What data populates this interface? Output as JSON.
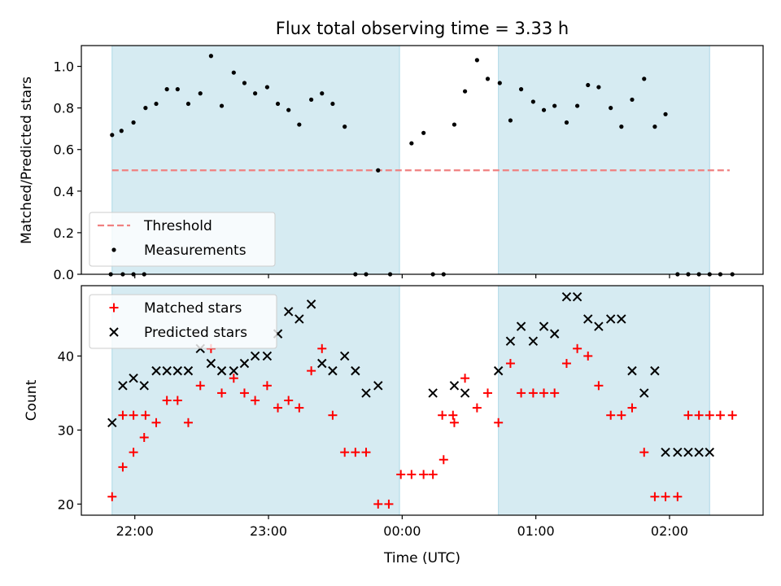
{
  "chart_data": [
    {
      "type": "scatter",
      "title": "Flux total observing time = 3.33 h",
      "xlabel": "",
      "ylabel": "Matched/Predicted stars",
      "x_unit": "hours (UTC, 22.0 = 22:00; values beyond 24 = next day)",
      "xlim": [
        21.6,
        26.7
      ],
      "ylim": [
        0.0,
        1.1
      ],
      "yticks": [
        "0.0",
        "0.2",
        "0.4",
        "0.6",
        "0.8",
        "1.0"
      ],
      "grid": false,
      "legend_position": "lower-left",
      "shaded_intervals": [
        [
          21.83,
          23.98
        ],
        [
          24.72,
          26.3
        ]
      ],
      "shade_color": "#add8e6",
      "series": [
        {
          "name": "Threshold",
          "style": "dashed-line",
          "color": "#f08080",
          "x": [
            21.83,
            26.45
          ],
          "y": [
            0.5,
            0.5
          ]
        },
        {
          "name": "Measurements",
          "style": "dot",
          "color": "#000000",
          "x": [
            21.82,
            21.91,
            21.99,
            22.07,
            21.83,
            21.9,
            21.99,
            22.08,
            22.16,
            22.24,
            22.32,
            22.4,
            22.49,
            22.57,
            22.65,
            22.74,
            22.82,
            22.9,
            22.99,
            23.07,
            23.15,
            23.23,
            23.32,
            23.4,
            23.48,
            23.57,
            23.65,
            23.73,
            23.82,
            23.91,
            24.07,
            24.16,
            24.23,
            24.31,
            24.39,
            24.47,
            24.56,
            24.64,
            24.73,
            24.81,
            24.89,
            24.98,
            25.06,
            25.14,
            25.23,
            25.31,
            25.39,
            25.47,
            25.56,
            25.64,
            25.72,
            25.81,
            25.89,
            25.97,
            26.06,
            26.14,
            26.22,
            26.3,
            26.38,
            26.47
          ],
          "y": [
            0.0,
            0.0,
            0.0,
            0.0,
            0.67,
            0.69,
            0.73,
            0.8,
            0.82,
            0.89,
            0.89,
            0.82,
            0.87,
            1.05,
            0.81,
            0.97,
            0.92,
            0.87,
            0.9,
            0.82,
            0.79,
            0.72,
            0.84,
            0.87,
            0.82,
            0.71,
            0.0,
            0.0,
            0.5,
            0.0,
            0.63,
            0.68,
            0.0,
            0.0,
            0.72,
            0.88,
            1.03,
            0.94,
            0.92,
            0.74,
            0.89,
            0.83,
            0.79,
            0.81,
            0.73,
            0.81,
            0.91,
            0.9,
            0.8,
            0.71,
            0.84,
            0.94,
            0.71,
            0.77,
            0.0,
            0.0,
            0.0,
            0.0,
            0.0,
            0.0
          ]
        }
      ]
    },
    {
      "type": "scatter",
      "title": "",
      "xlabel": "Time (UTC)",
      "ylabel": "Count",
      "xlim": [
        21.6,
        26.7
      ],
      "ylim": [
        18.5,
        49.5
      ],
      "xticks": [
        {
          "value": 22.0,
          "label": "22:00"
        },
        {
          "value": 23.0,
          "label": "23:00"
        },
        {
          "value": 24.0,
          "label": "00:00"
        },
        {
          "value": 25.0,
          "label": "01:00"
        },
        {
          "value": 26.0,
          "label": "02:00"
        }
      ],
      "yticks": [
        "20",
        "30",
        "40"
      ],
      "grid": false,
      "legend_position": "upper-left",
      "shaded_intervals": [
        [
          21.83,
          23.98
        ],
        [
          24.72,
          26.3
        ]
      ],
      "shade_color": "#add8e6",
      "series": [
        {
          "name": "Matched stars",
          "style": "plus",
          "color": "#ff0000",
          "x": [
            21.83,
            21.91,
            21.99,
            22.07,
            22.16,
            22.24,
            22.32,
            22.4,
            22.49,
            22.57,
            22.65,
            22.74,
            22.82,
            22.9,
            22.99,
            23.07,
            23.15,
            23.23,
            23.32,
            23.4,
            23.48,
            23.57,
            23.65,
            23.73,
            23.82,
            23.9,
            23.99,
            24.07,
            24.16,
            24.23,
            24.31,
            24.39,
            24.47,
            24.56,
            24.64,
            24.72,
            24.81,
            24.89,
            24.98,
            25.06,
            25.14,
            25.23,
            25.31,
            25.39,
            25.47,
            25.56,
            25.64,
            25.72,
            25.81,
            25.89,
            25.97,
            26.06,
            26.14,
            26.22,
            26.3,
            26.38,
            26.47,
            21.91,
            21.99,
            22.08,
            24.3,
            24.38
          ],
          "y": [
            21,
            25,
            27,
            29,
            31,
            34,
            34,
            31,
            36,
            41,
            35,
            37,
            35,
            34,
            36,
            33,
            34,
            33,
            38,
            41,
            32,
            27,
            27,
            27,
            20,
            20,
            24,
            24,
            24,
            24,
            26,
            31,
            37,
            33,
            35,
            31,
            39,
            35,
            35,
            35,
            35,
            39,
            41,
            40,
            36,
            32,
            32,
            33,
            27,
            21,
            21,
            21,
            32,
            32,
            32,
            32,
            32,
            32,
            32,
            32,
            32,
            32
          ],
          "note": ""
        },
        {
          "name": "Predicted stars",
          "style": "x",
          "color": "#000000",
          "x": [
            21.83,
            21.91,
            21.99,
            22.07,
            22.16,
            22.24,
            22.32,
            22.4,
            22.49,
            22.57,
            22.65,
            22.74,
            22.82,
            22.9,
            22.99,
            23.07,
            23.15,
            23.23,
            23.32,
            23.4,
            23.48,
            23.57,
            23.65,
            23.73,
            23.82,
            24.23,
            24.39,
            24.47,
            24.72,
            24.81,
            24.89,
            24.98,
            25.06,
            25.14,
            25.23,
            25.31,
            25.39,
            25.47,
            25.56,
            25.64,
            25.72,
            25.81,
            25.89,
            25.97,
            26.06,
            26.14,
            26.22,
            26.3
          ],
          "y": [
            31,
            36,
            37,
            36,
            38,
            38,
            38,
            38,
            41,
            39,
            38,
            38,
            39,
            40,
            40,
            43,
            46,
            45,
            47,
            39,
            38,
            40,
            38,
            35,
            36,
            35,
            36,
            35,
            38,
            42,
            44,
            42,
            44,
            43,
            48,
            48,
            45,
            44,
            45,
            45,
            38,
            35,
            38,
            27,
            27,
            27,
            27,
            27
          ]
        }
      ]
    }
  ]
}
